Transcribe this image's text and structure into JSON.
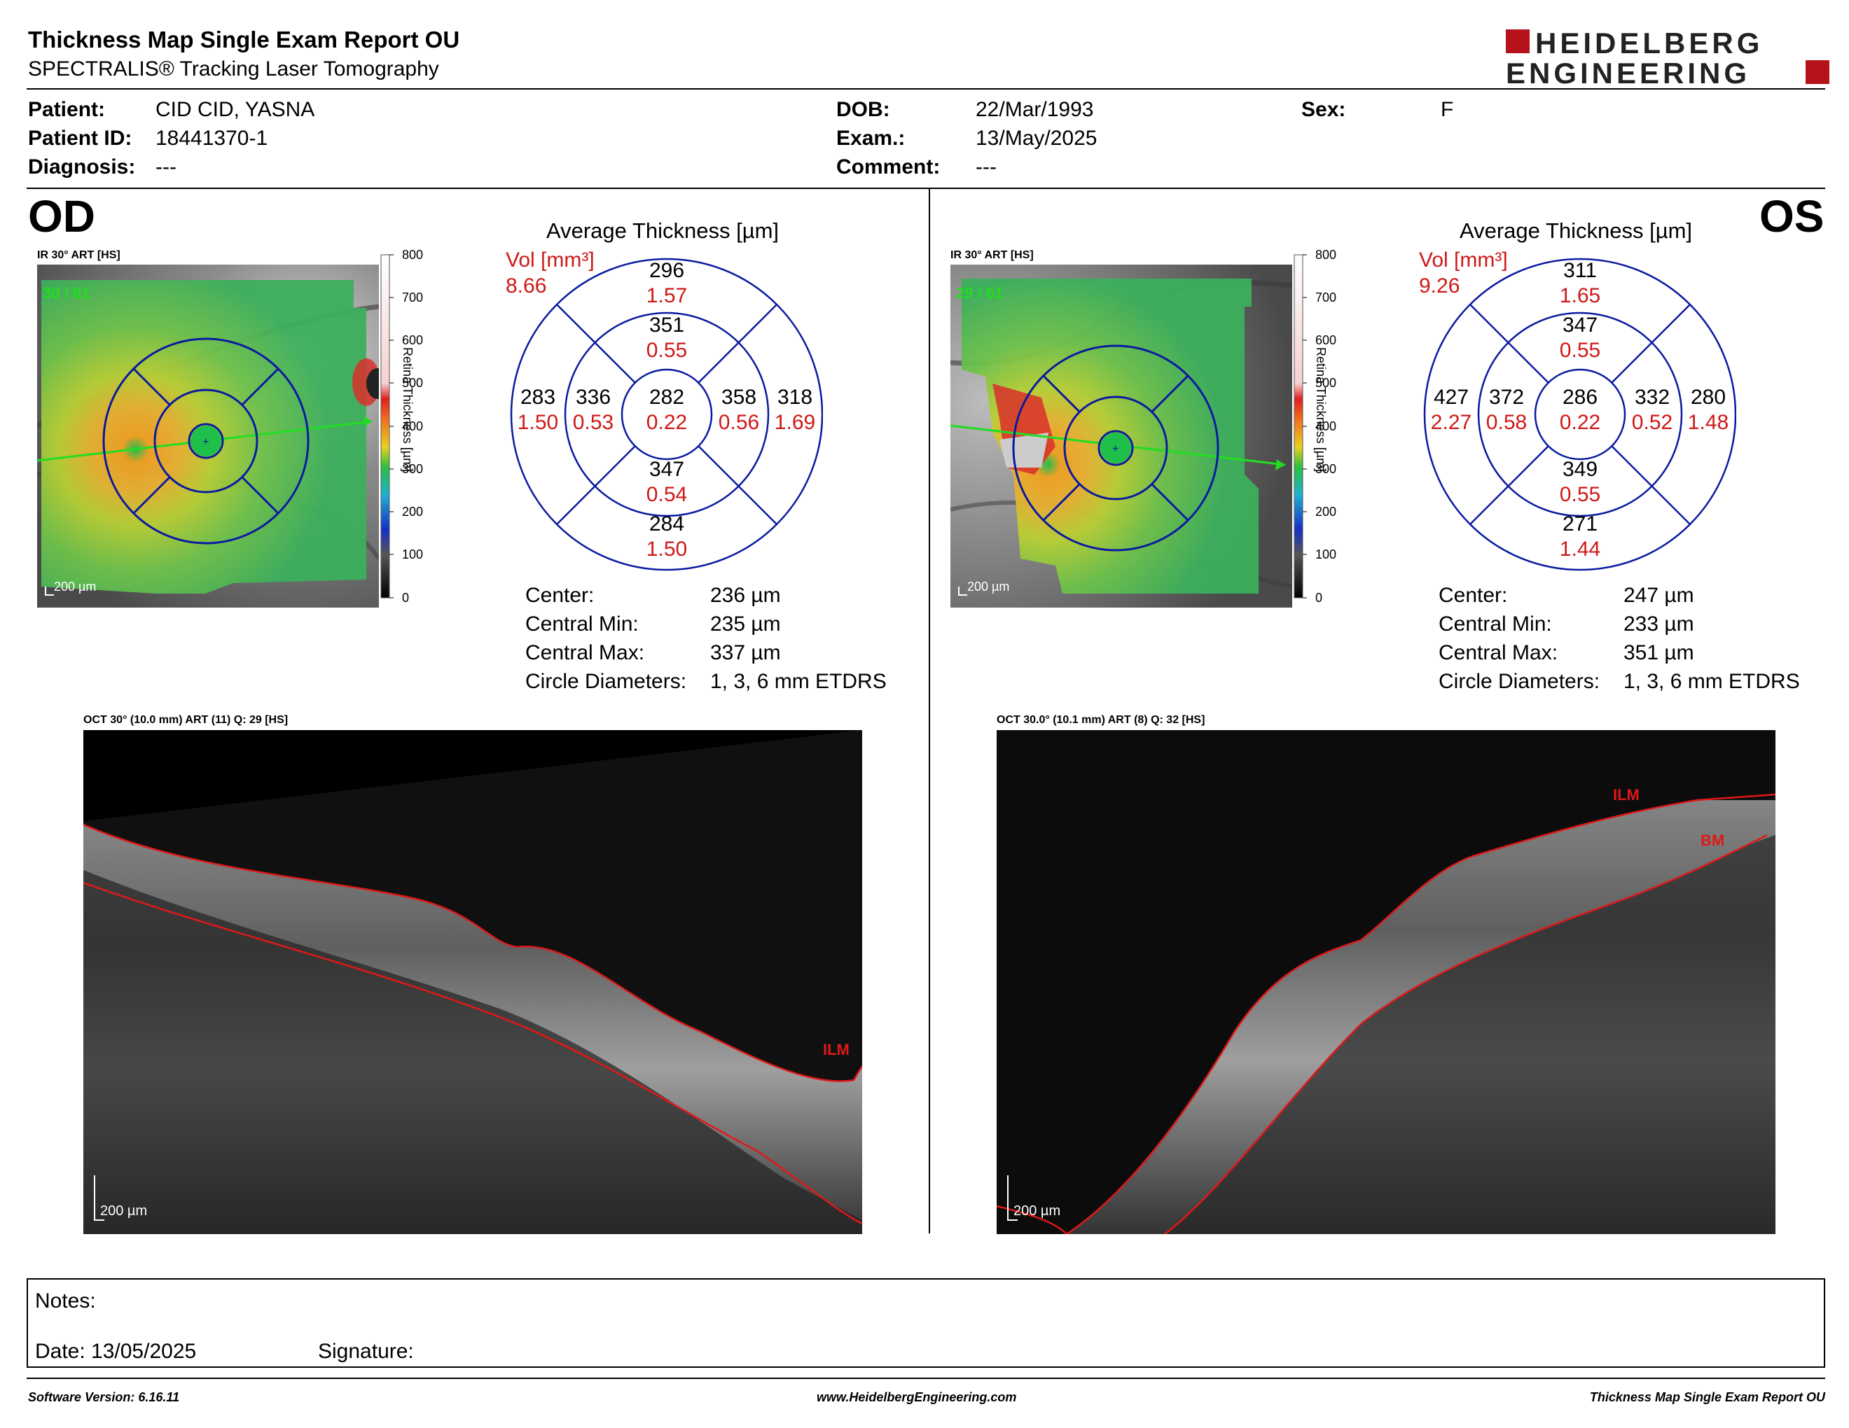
{
  "header": {
    "title": "Thickness Map Single Exam Report OU",
    "subtitle": "SPECTRALIS® Tracking Laser Tomography",
    "logo_line1": "HEIDELBERG",
    "logo_line2": "ENGINEERING",
    "logo_color": "#b5121b"
  },
  "patient": {
    "patient_label": "Patient:",
    "patient_value": "CID CID, YASNA",
    "id_label": "Patient ID:",
    "id_value": "18441370-1",
    "diagnosis_label": "Diagnosis:",
    "diagnosis_value": "---",
    "dob_label": "DOB:",
    "dob_value": "22/Mar/1993",
    "exam_label": "Exam.:",
    "exam_value": "13/May/2025",
    "comment_label": "Comment:",
    "comment_value": "---",
    "sex_label": "Sex:",
    "sex_value": "F"
  },
  "scale": {
    "ticks": [
      "800",
      "700",
      "600",
      "500",
      "400",
      "300",
      "200",
      "100",
      "0"
    ],
    "label": "Retina Thickness [µm]"
  },
  "od": {
    "eye_label": "OD",
    "ir_caption": "IR 30° ART [HS]",
    "ir_quality": "30 / 61",
    "ir_scale": "200 µm",
    "avg_title": "Average Thickness [µm]",
    "vol_label": "Vol [mm³]",
    "vol_value": "8.66",
    "etdrs": {
      "center": [
        "282",
        "0.22"
      ],
      "inner_superior": [
        "351",
        "0.55"
      ],
      "inner_nasal": [
        "358",
        "0.56"
      ],
      "inner_inferior": [
        "347",
        "0.54"
      ],
      "inner_temporal": [
        "336",
        "0.53"
      ],
      "outer_superior": [
        "296",
        "1.57"
      ],
      "outer_nasal": [
        "318",
        "1.69"
      ],
      "outer_inferior": [
        "284",
        "1.50"
      ],
      "outer_temporal": [
        "283",
        "1.50"
      ]
    },
    "stats": [
      {
        "label": "Center:",
        "value": "236 µm"
      },
      {
        "label": "Central Min:",
        "value": "235 µm"
      },
      {
        "label": "Central Max:",
        "value": "337 µm"
      },
      {
        "label": "Circle Diameters:",
        "value": "1, 3, 6 mm ETDRS"
      }
    ],
    "oct_caption": "OCT 30° (10.0 mm) ART (11) Q: 29 [HS]",
    "oct_scale": "200 µm",
    "oct_ilm": "ILM"
  },
  "os": {
    "eye_label": "OS",
    "ir_caption": "IR 30° ART [HS]",
    "ir_quality": "29 / 61",
    "ir_scale": "200 µm",
    "avg_title": "Average Thickness [µm]",
    "vol_label": "Vol [mm³]",
    "vol_value": "9.26",
    "etdrs": {
      "center": [
        "286",
        "0.22"
      ],
      "inner_superior": [
        "347",
        "0.55"
      ],
      "inner_nasal": [
        "372",
        "0.58"
      ],
      "inner_inferior": [
        "349",
        "0.55"
      ],
      "inner_temporal": [
        "332",
        "0.52"
      ],
      "outer_superior": [
        "311",
        "1.65"
      ],
      "outer_nasal": [
        "427",
        "2.27"
      ],
      "outer_inferior": [
        "271",
        "1.44"
      ],
      "outer_temporal": [
        "280",
        "1.48"
      ]
    },
    "stats": [
      {
        "label": "Center:",
        "value": "247 µm"
      },
      {
        "label": "Central Min:",
        "value": "233 µm"
      },
      {
        "label": "Central Max:",
        "value": "351 µm"
      },
      {
        "label": "Circle Diameters:",
        "value": "1, 3, 6 mm ETDRS"
      }
    ],
    "oct_caption": "OCT 30.0° (10.1 mm) ART (8) Q: 32 [HS]",
    "oct_scale": "200 µm",
    "oct_ilm": "ILM",
    "oct_bm": "BM"
  },
  "notes": {
    "notes_label": "Notes:",
    "date_label": "Date: 13/05/2025",
    "signature_label": "Signature:"
  },
  "footer": {
    "software": "Software Version: 6.16.11",
    "website": "www.HeidelbergEngineering.com",
    "report": "Thickness Map Single Exam Report OU"
  }
}
